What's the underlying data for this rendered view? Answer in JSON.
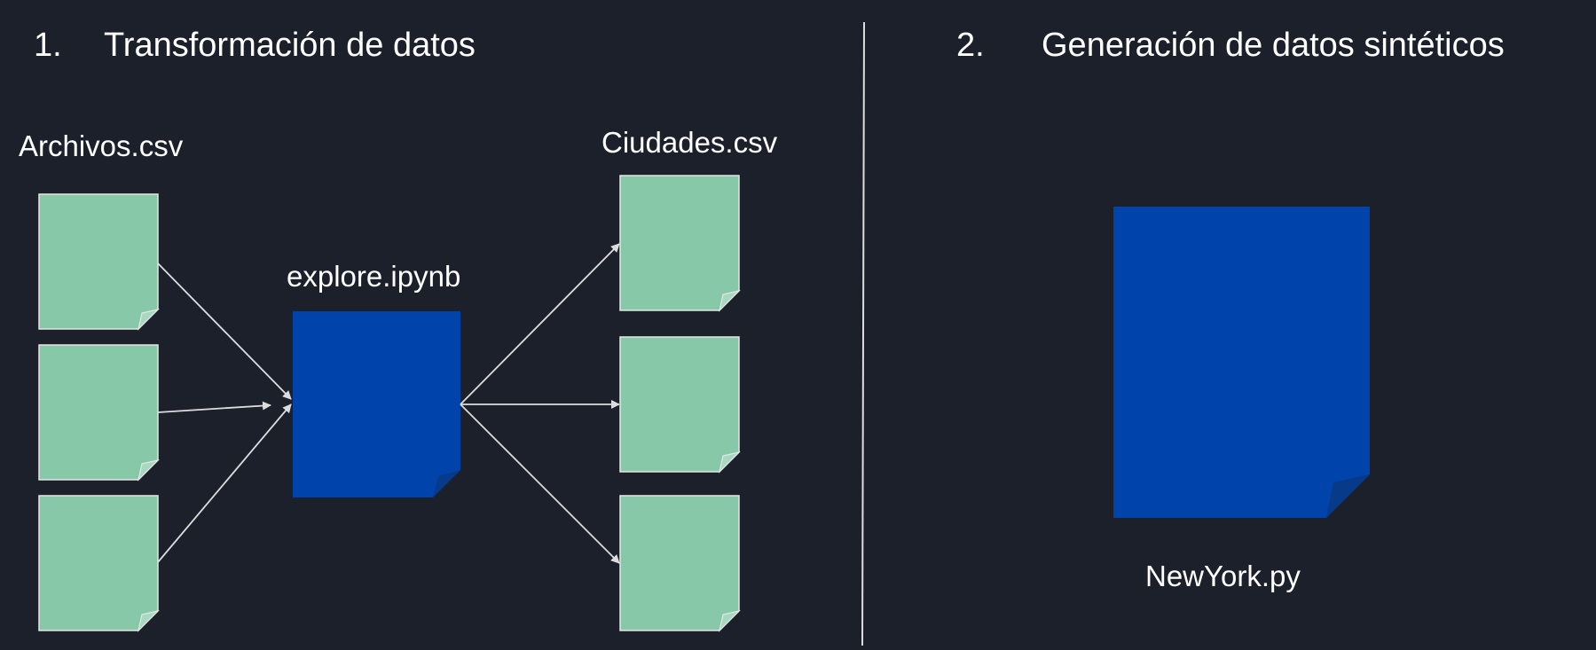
{
  "sections": [
    {
      "number": "1.",
      "title": "Transformación de datos"
    },
    {
      "number": "2.",
      "title": "Generación de datos sintéticos"
    }
  ],
  "left_diagram": {
    "source_label": "Archivos.csv",
    "processor_label": "explore.ipynb",
    "output_label": "Ciudades.csv",
    "source_file_count": 3,
    "output_file_count": 3
  },
  "right_diagram": {
    "file_label": "NewYork.py"
  },
  "colors": {
    "background": "#1c202b",
    "csv_file": "#86c8a8",
    "script_file": "#0043aa",
    "script_fold": "#083a8a",
    "line": "#dddddd",
    "text": "#ffffff"
  }
}
